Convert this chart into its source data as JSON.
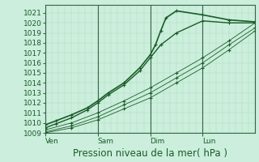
{
  "xlabel": "Pression niveau de la mer( hPa )",
  "bg_color": "#cceedd",
  "grid_major_color": "#88bb99",
  "grid_minor_color": "#aaddbb",
  "line_color": "#1a5c28",
  "tick_label_color": "#1a5c28",
  "xlabel_color": "#1a5c28",
  "ylim": [
    1009,
    1021.8
  ],
  "yticks": [
    1009,
    1010,
    1011,
    1012,
    1013,
    1014,
    1015,
    1016,
    1017,
    1018,
    1019,
    1020,
    1021
  ],
  "xlim": [
    0.0,
    4.0
  ],
  "xtick_positions": [
    0.0,
    1.0,
    2.0,
    3.0
  ],
  "xtick_labels": [
    "Ven",
    "Sam",
    "Dim",
    "Lun"
  ],
  "vlines_x": [
    0.0,
    1.0,
    2.0,
    3.0
  ],
  "vline_color": "#336644",
  "lines": [
    {
      "x": [
        0.0,
        0.2,
        0.5,
        0.8,
        1.0,
        1.2,
        1.5,
        1.8,
        2.0,
        2.1,
        2.2,
        2.3,
        2.5,
        3.0,
        3.5,
        4.0
      ],
      "y": [
        1009.8,
        1010.2,
        1010.8,
        1011.5,
        1012.2,
        1013.0,
        1014.0,
        1015.5,
        1016.8,
        1017.8,
        1019.2,
        1020.5,
        1021.2,
        1020.8,
        1020.3,
        1020.1
      ],
      "lw": 1.2
    },
    {
      "x": [
        0.0,
        0.2,
        0.5,
        0.8,
        1.0,
        1.2,
        1.5,
        1.8,
        2.0,
        2.2,
        2.5,
        3.0,
        3.5,
        4.0
      ],
      "y": [
        1009.5,
        1009.9,
        1010.5,
        1011.3,
        1012.0,
        1012.8,
        1013.8,
        1015.2,
        1016.5,
        1017.8,
        1019.0,
        1020.2,
        1020.0,
        1020.0
      ],
      "lw": 1.0
    },
    {
      "x": [
        0.0,
        0.5,
        1.0,
        1.5,
        2.0,
        2.5,
        3.0,
        3.5,
        4.0
      ],
      "y": [
        1009.3,
        1010.0,
        1011.0,
        1012.2,
        1013.5,
        1015.0,
        1016.5,
        1018.2,
        1020.0
      ],
      "lw": 0.6
    },
    {
      "x": [
        0.0,
        0.5,
        1.0,
        1.5,
        2.0,
        2.5,
        3.0,
        3.5,
        4.0
      ],
      "y": [
        1009.1,
        1009.7,
        1010.6,
        1011.8,
        1013.0,
        1014.5,
        1016.0,
        1017.8,
        1019.5
      ],
      "lw": 0.6
    },
    {
      "x": [
        0.0,
        0.5,
        1.0,
        1.5,
        2.0,
        2.5,
        3.0,
        3.5,
        4.0
      ],
      "y": [
        1009.0,
        1009.5,
        1010.3,
        1011.4,
        1012.5,
        1014.0,
        1015.5,
        1017.3,
        1019.2
      ],
      "lw": 0.6
    }
  ],
  "tick_fontsize": 6.5,
  "xlabel_fontsize": 8.5,
  "font_family": "DejaVu Sans"
}
